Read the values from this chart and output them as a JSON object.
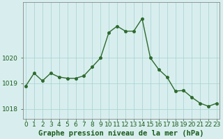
{
  "hours": [
    0,
    1,
    2,
    3,
    4,
    5,
    6,
    7,
    8,
    9,
    10,
    11,
    12,
    13,
    14,
    15,
    16,
    17,
    18,
    19,
    20,
    21,
    22,
    23
  ],
  "pressure": [
    1018.9,
    1019.4,
    1019.1,
    1019.4,
    1019.25,
    1019.2,
    1019.2,
    1019.3,
    1019.65,
    1020.0,
    1021.0,
    1021.25,
    1021.05,
    1021.05,
    1021.55,
    1020.0,
    1019.55,
    1019.25,
    1018.7,
    1018.72,
    1018.45,
    1018.22,
    1018.1,
    1018.22
  ],
  "line_color": "#2d6a2d",
  "marker": "o",
  "markersize": 2.5,
  "linewidth": 1.0,
  "bg_color": "#d8eeee",
  "grid_color": "#aed4d4",
  "xlabel": "Graphe pression niveau de la mer (hPa)",
  "xlabel_color": "#1a5c1a",
  "tick_color": "#1a5c1a",
  "axis_color": "#888888",
  "ylim": [
    1017.6,
    1022.2
  ],
  "yticks": [
    1018,
    1019,
    1020
  ],
  "xlim": [
    -0.3,
    23.3
  ],
  "label_fontsize": 7.5,
  "tick_fontsize": 6.5
}
